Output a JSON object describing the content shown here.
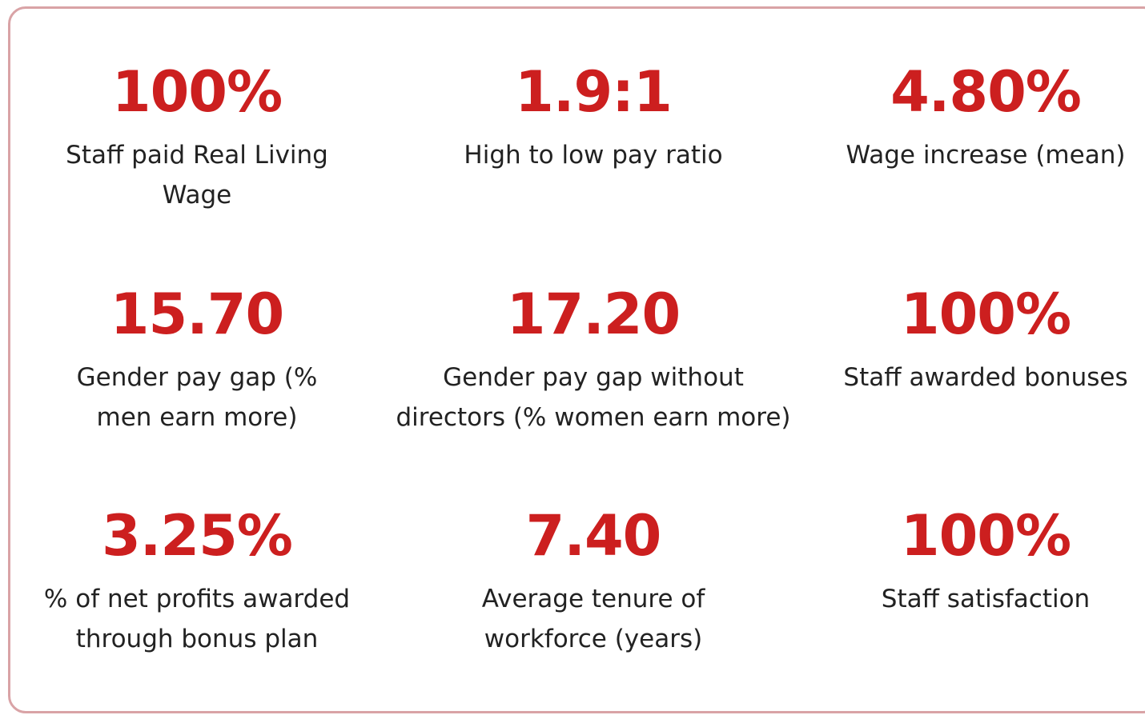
{
  "kpis": [
    {
      "value": "100%",
      "label": [
        "Staff paid Real Living",
        "Wage"
      ]
    },
    {
      "value": "1.9:1",
      "label": [
        "High to low pay ratio"
      ]
    },
    {
      "value": "4.80%",
      "label": [
        "Wage increase (mean)"
      ]
    },
    {
      "value": "15.70",
      "label": [
        "Gender pay gap (%",
        "men earn more)"
      ]
    },
    {
      "value": "17.20",
      "label": [
        "Gender pay gap without",
        "directors (% women earn more)"
      ]
    },
    {
      "value": "100%",
      "label": [
        "Staff awarded bonuses"
      ]
    },
    {
      "value": "3.25%",
      "label": [
        "% of net profits awarded",
        "through bonus plan"
      ]
    },
    {
      "value": "7.40",
      "label": [
        "Average tenure of",
        "workforce (years)"
      ]
    },
    {
      "value": "100%",
      "label": [
        "Staff satisfaction"
      ]
    }
  ]
}
